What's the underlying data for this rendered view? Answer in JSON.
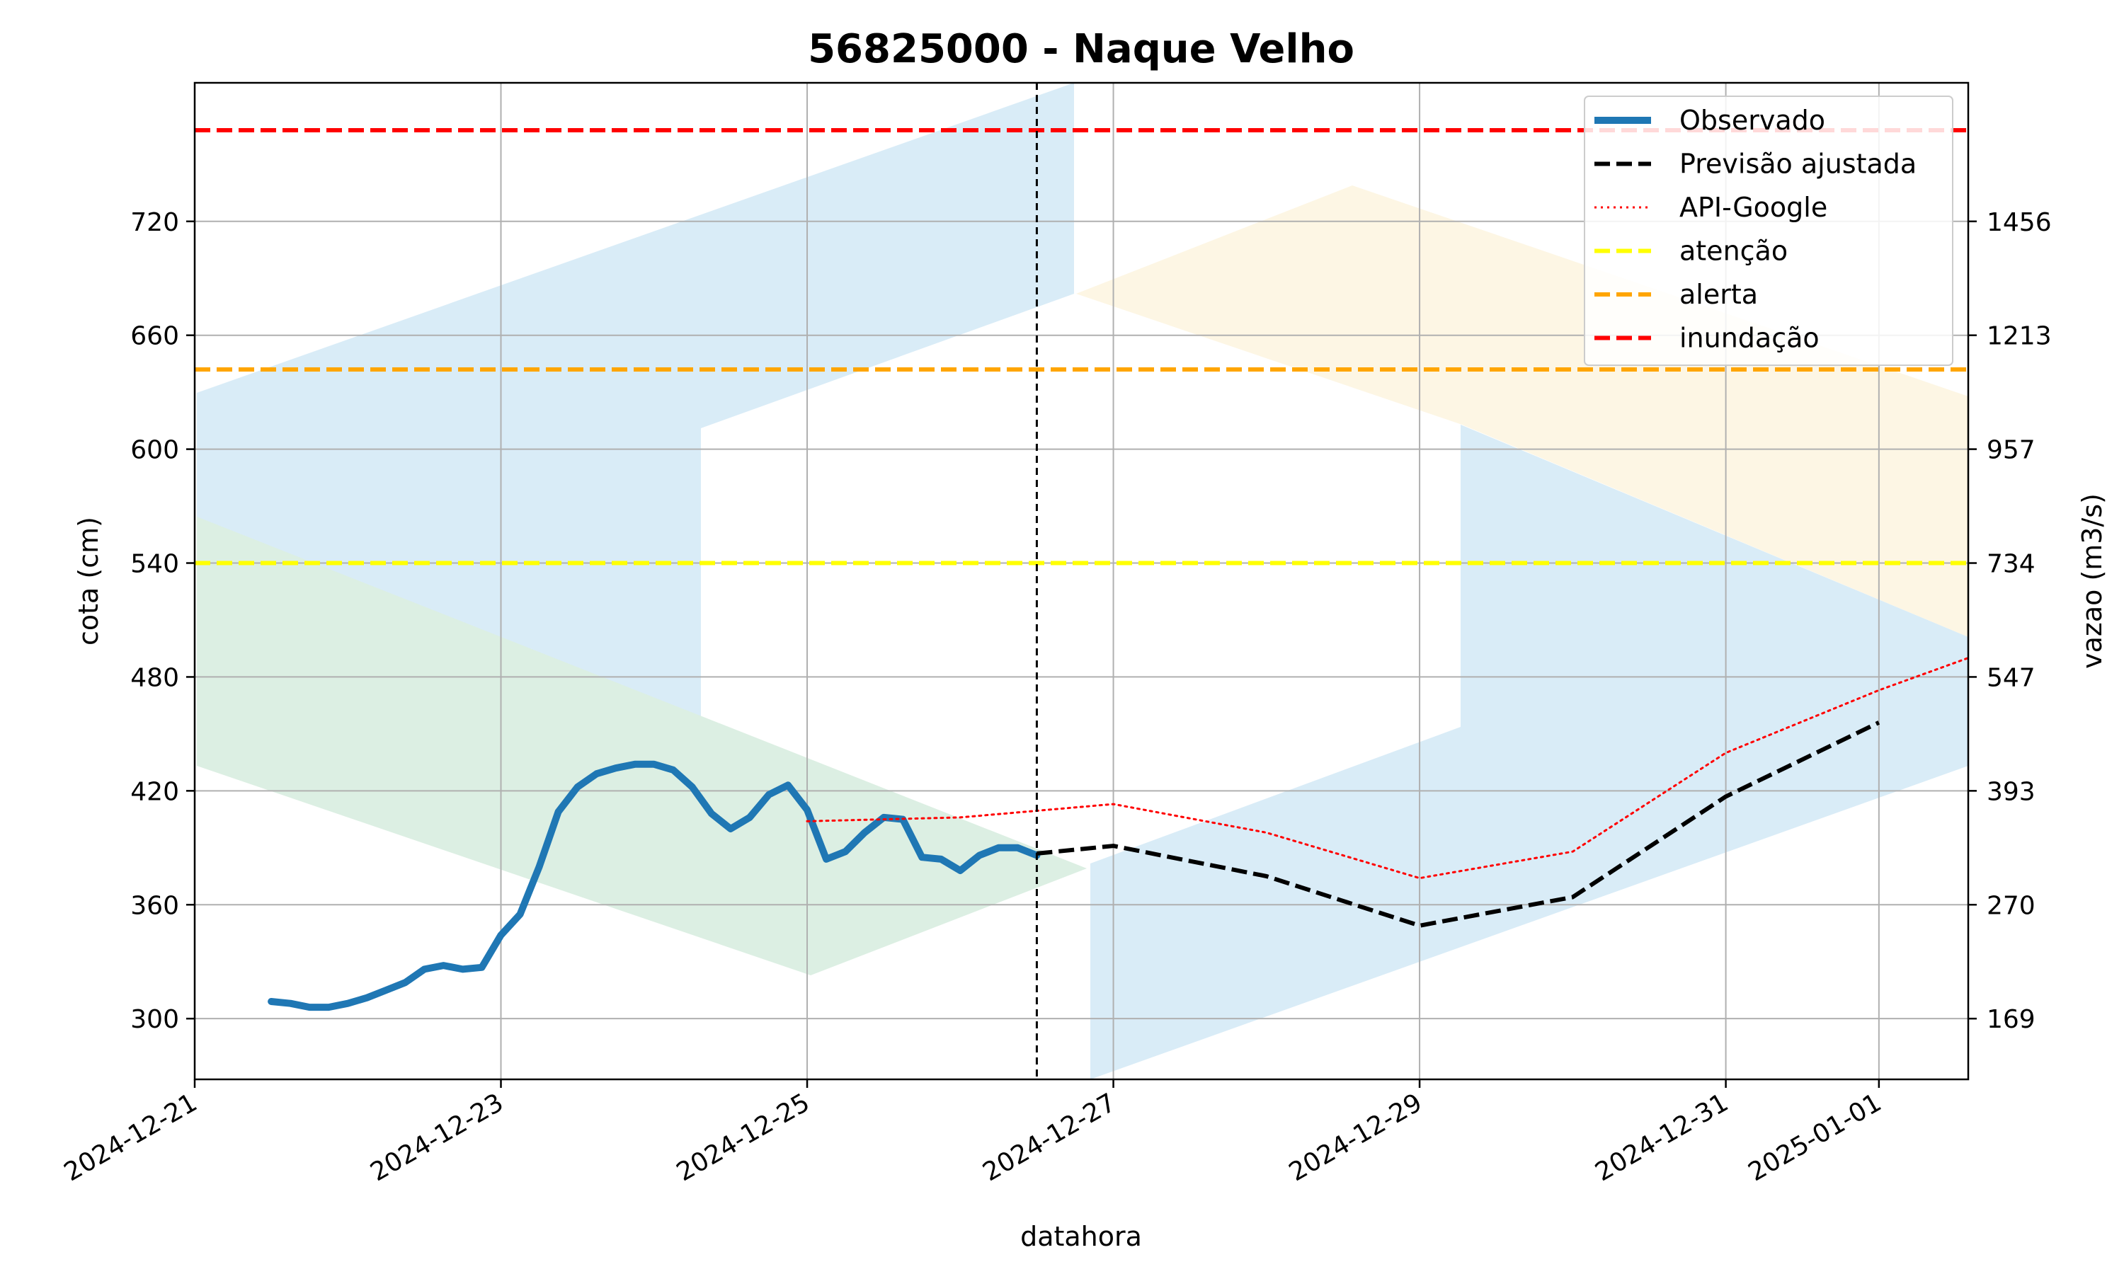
{
  "chart_data": {
    "type": "line",
    "title": "56825000 - Naque Velho",
    "xlabel": "datahora",
    "ylabel_left": "cota (cm)",
    "ylabel_right": "vazao (m3/s)",
    "xlim": [
      "2024-12-21",
      "2025-01-01T14:00"
    ],
    "ylim": [
      268,
      793
    ],
    "x_ticks": [
      "2024-12-21",
      "2024-12-23",
      "2024-12-25",
      "2024-12-27",
      "2024-12-29",
      "2024-12-31",
      "2025-01-01"
    ],
    "y_ticks_left": [
      300,
      360,
      420,
      480,
      540,
      600,
      660,
      720
    ],
    "y_ticks_right": [
      {
        "cota": 300,
        "label": "169"
      },
      {
        "cota": 360,
        "label": "270"
      },
      {
        "cota": 420,
        "label": "393"
      },
      {
        "cota": 480,
        "label": "547"
      },
      {
        "cota": 540,
        "label": "734"
      },
      {
        "cota": 600,
        "label": "957"
      },
      {
        "cota": 660,
        "label": "1213"
      },
      {
        "cota": 720,
        "label": "1456"
      }
    ],
    "grid": true,
    "legend_position": "top-right",
    "forecast_start": "2024-12-26T12:00",
    "series": [
      {
        "name": "Observado",
        "color": "#1f77b4",
        "style": "solid",
        "points": [
          [
            "2024-12-21T12:00",
            309
          ],
          [
            "2024-12-21T15:00",
            308
          ],
          [
            "2024-12-21T18:00",
            306
          ],
          [
            "2024-12-21T21:00",
            306
          ],
          [
            "2024-12-22T00:00",
            308
          ],
          [
            "2024-12-22T03:00",
            311
          ],
          [
            "2024-12-22T06:00",
            315
          ],
          [
            "2024-12-22T09:00",
            319
          ],
          [
            "2024-12-22T12:00",
            326
          ],
          [
            "2024-12-22T15:00",
            328
          ],
          [
            "2024-12-22T18:00",
            326
          ],
          [
            "2024-12-22T21:00",
            327
          ],
          [
            "2024-12-23T00:00",
            344
          ],
          [
            "2024-12-23T03:00",
            355
          ],
          [
            "2024-12-23T06:00",
            380
          ],
          [
            "2024-12-23T09:00",
            409
          ],
          [
            "2024-12-23T12:00",
            422
          ],
          [
            "2024-12-23T15:00",
            429
          ],
          [
            "2024-12-23T18:00",
            432
          ],
          [
            "2024-12-23T21:00",
            434
          ],
          [
            "2024-12-24T00:00",
            434
          ],
          [
            "2024-12-24T03:00",
            431
          ],
          [
            "2024-12-24T06:00",
            422
          ],
          [
            "2024-12-24T09:00",
            408
          ],
          [
            "2024-12-24T12:00",
            400
          ],
          [
            "2024-12-24T15:00",
            406
          ],
          [
            "2024-12-24T18:00",
            418
          ],
          [
            "2024-12-24T21:00",
            423
          ],
          [
            "2024-12-25T00:00",
            410
          ],
          [
            "2024-12-25T03:00",
            384
          ],
          [
            "2024-12-25T06:00",
            388
          ],
          [
            "2024-12-25T09:00",
            398
          ],
          [
            "2024-12-25T12:00",
            406
          ],
          [
            "2024-12-25T15:00",
            405
          ],
          [
            "2024-12-25T18:00",
            385
          ],
          [
            "2024-12-25T21:00",
            384
          ],
          [
            "2024-12-26T00:00",
            378
          ],
          [
            "2024-12-26T03:00",
            386
          ],
          [
            "2024-12-26T06:00",
            390
          ],
          [
            "2024-12-26T09:00",
            390
          ],
          [
            "2024-12-26T12:00",
            386
          ]
        ]
      },
      {
        "name": "Previsão ajustada",
        "color": "#000000",
        "style": "dashed",
        "points": [
          [
            "2024-12-26T12:00",
            387
          ],
          [
            "2024-12-27T00:00",
            391
          ],
          [
            "2024-12-28T00:00",
            375
          ],
          [
            "2024-12-29T00:00",
            349
          ],
          [
            "2024-12-30T00:00",
            364
          ],
          [
            "2024-12-31T00:00",
            417
          ],
          [
            "2025-01-01T00:00",
            456
          ]
        ]
      },
      {
        "name": "API-Google",
        "color": "#ff0000",
        "style": "dotted",
        "points": [
          [
            "2024-12-25T00:00",
            404
          ],
          [
            "2024-12-26T00:00",
            406
          ],
          [
            "2024-12-27T00:00",
            413
          ],
          [
            "2024-12-28T00:00",
            398
          ],
          [
            "2024-12-29T00:00",
            374
          ],
          [
            "2024-12-30T00:00",
            388
          ],
          [
            "2024-12-31T00:00",
            440
          ],
          [
            "2025-01-01T00:00",
            473
          ],
          [
            "2025-01-01T14:00",
            490
          ]
        ]
      },
      {
        "name": "atenção",
        "color": "#ffff00",
        "style": "dashed",
        "y": 540
      },
      {
        "name": "alerta",
        "color": "#ffa500",
        "style": "dashed",
        "y": 642
      },
      {
        "name": "inundação",
        "color": "#ff0000",
        "style": "dashed",
        "y": 768
      }
    ]
  }
}
